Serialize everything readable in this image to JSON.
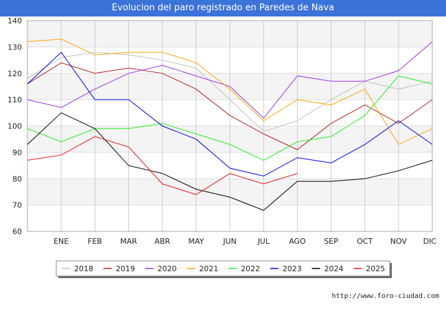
{
  "header": {
    "title": "Evolucion del paro registrado en Paredes de Nava"
  },
  "footer": {
    "url": "http://www.foro-ciudad.com"
  },
  "chart_data": {
    "type": "line",
    "title": "Evolucion del paro registrado en Paredes de Nava",
    "xlabel": "",
    "ylabel": "",
    "categories": [
      "",
      "ENE",
      "FEB",
      "MAR",
      "ABR",
      "MAY",
      "JUN",
      "JUL",
      "AGO",
      "SEP",
      "OCT",
      "NOV",
      "DIC"
    ],
    "ylim": [
      60,
      140
    ],
    "yticks": [
      60,
      70,
      80,
      90,
      100,
      110,
      120,
      130,
      140
    ],
    "grid": true,
    "legend_position": "bottom",
    "series": [
      {
        "name": "2018",
        "color": "#c0c0c0",
        "values": [
          118,
          126,
          128,
          127,
          125,
          122,
          110,
          98,
          102,
          110,
          117,
          114,
          117
        ]
      },
      {
        "name": "2019",
        "color": "#b22222",
        "values": [
          116,
          124,
          120,
          122,
          120,
          114,
          104,
          97,
          91,
          101,
          108,
          101,
          110
        ]
      },
      {
        "name": "2020",
        "color": "#9933ee",
        "values": [
          110,
          107,
          114,
          120,
          123,
          119,
          115,
          103,
          119,
          117,
          117,
          121,
          132
        ]
      },
      {
        "name": "2021",
        "color": "#ffa500",
        "values": [
          132,
          133,
          127,
          128,
          128,
          124,
          114,
          102,
          110,
          108,
          114,
          93,
          99
        ]
      },
      {
        "name": "2022",
        "color": "#22ee22",
        "values": [
          99,
          94,
          99,
          99,
          101,
          97,
          93,
          87,
          94,
          96,
          104,
          119,
          116
        ]
      },
      {
        "name": "2023",
        "color": "#0000ee",
        "values": [
          116,
          128,
          110,
          110,
          100,
          95,
          84,
          81,
          88,
          86,
          93,
          102,
          93
        ]
      },
      {
        "name": "2024",
        "color": "#000000",
        "values": [
          93,
          105,
          99,
          85,
          82,
          76,
          73,
          68,
          79,
          79,
          80,
          83,
          87
        ]
      },
      {
        "name": "2025",
        "color": "#ee1111",
        "values": [
          87,
          89,
          96,
          92,
          78,
          74,
          82,
          78,
          82,
          null,
          null,
          null,
          null
        ]
      }
    ]
  }
}
